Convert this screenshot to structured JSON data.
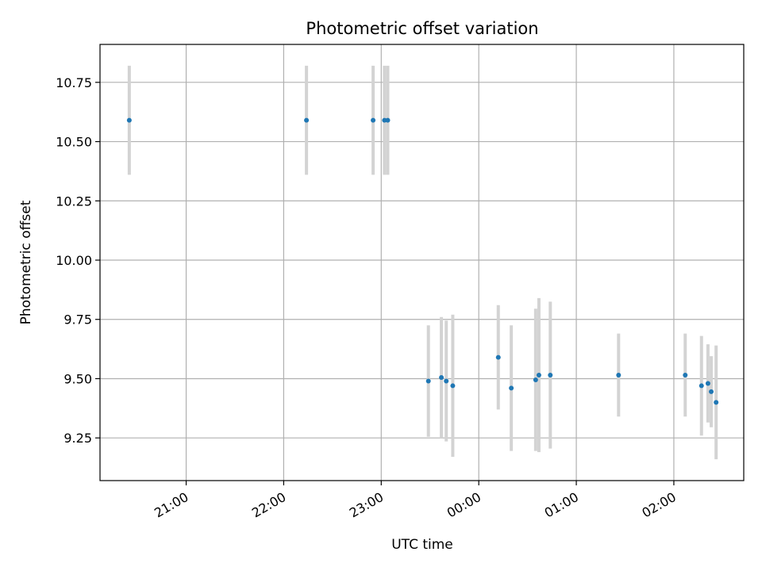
{
  "chart_data": {
    "type": "scatter",
    "title": "Photometric offset variation",
    "xlabel": "UTC time",
    "ylabel": "Photometric offset",
    "x_axis_kind": "time",
    "x_range": [
      "20:07",
      "02:43"
    ],
    "ylim": [
      9.07,
      10.91
    ],
    "x_ticks": [
      {
        "time": "21:00",
        "label": "21:00"
      },
      {
        "time": "22:00",
        "label": "22:00"
      },
      {
        "time": "23:00",
        "label": "23:00"
      },
      {
        "time": "00:00",
        "label": "00:00"
      },
      {
        "time": "01:00",
        "label": "01:00"
      },
      {
        "time": "02:00",
        "label": "02:00"
      }
    ],
    "y_ticks": [
      {
        "value": 9.25,
        "label": "9.25"
      },
      {
        "value": 9.5,
        "label": "9.50"
      },
      {
        "value": 9.75,
        "label": "9.75"
      },
      {
        "value": 10.0,
        "label": "10.00"
      },
      {
        "value": 10.25,
        "label": "10.25"
      },
      {
        "value": 10.5,
        "label": "10.50"
      },
      {
        "value": 10.75,
        "label": "10.75"
      }
    ],
    "grid": true,
    "colors": {
      "point": "#1f77b4",
      "errorbar": "#d3d3d3",
      "grid": "#b0b0b0"
    },
    "series": [
      {
        "points": [
          {
            "time": "20:25",
            "y": 10.59,
            "err": 0.23
          },
          {
            "time": "22:14",
            "y": 10.59,
            "err": 0.23
          },
          {
            "time": "22:55",
            "y": 10.59,
            "err": 0.23
          },
          {
            "time": "23:02",
            "y": 10.59,
            "err": 0.23
          },
          {
            "time": "23:04",
            "y": 10.59,
            "err": 0.23
          },
          {
            "time": "23:29",
            "y": 9.49,
            "err": 0.235
          },
          {
            "time": "23:37",
            "y": 9.505,
            "err": 0.255
          },
          {
            "time": "23:40",
            "y": 9.49,
            "err": 0.255
          },
          {
            "time": "23:44",
            "y": 9.47,
            "err": 0.3
          },
          {
            "time": "00:12",
            "y": 9.59,
            "err": 0.22
          },
          {
            "time": "00:20",
            "y": 9.46,
            "err": 0.265
          },
          {
            "time": "00:35",
            "y": 9.495,
            "err": 0.3
          },
          {
            "time": "00:37",
            "y": 9.515,
            "err": 0.325
          },
          {
            "time": "00:44",
            "y": 9.515,
            "err": 0.31
          },
          {
            "time": "01:26",
            "y": 9.515,
            "err": 0.175
          },
          {
            "time": "02:07",
            "y": 9.515,
            "err": 0.175
          },
          {
            "time": "02:17",
            "y": 9.47,
            "err": 0.21
          },
          {
            "time": "02:21",
            "y": 9.48,
            "err": 0.165
          },
          {
            "time": "02:23",
            "y": 9.445,
            "err": 0.15
          },
          {
            "time": "02:26",
            "y": 9.4,
            "err": 0.24
          }
        ]
      }
    ]
  }
}
